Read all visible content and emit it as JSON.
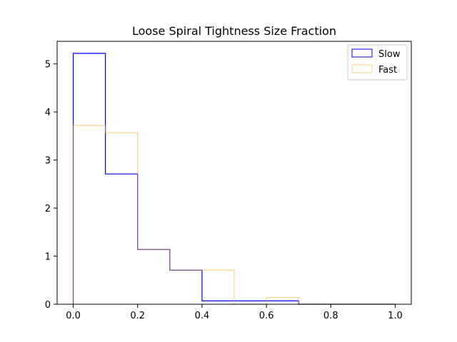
{
  "chart_data": {
    "type": "histogram",
    "title": "Loose Spiral Tightness Size Fraction",
    "xlabel": "",
    "ylabel": "",
    "bin_edges": [
      0.0,
      0.1,
      0.2,
      0.3,
      0.4,
      0.5,
      0.6,
      0.7,
      0.8,
      0.9,
      1.0
    ],
    "xlim": [
      -0.05,
      1.05
    ],
    "ylim": [
      0,
      5.47
    ],
    "xticks": [
      0.0,
      0.2,
      0.4,
      0.6,
      0.8,
      1.0
    ],
    "xtick_labels": [
      "0.0",
      "0.2",
      "0.4",
      "0.6",
      "0.8",
      "1.0"
    ],
    "yticks": [
      0,
      1,
      2,
      3,
      4,
      5
    ],
    "ytick_labels": [
      "0",
      "1",
      "2",
      "3",
      "4",
      "5"
    ],
    "grid": false,
    "legend_position": "top-right",
    "series": [
      {
        "name": "Slow",
        "color": "#0000ff",
        "values": [
          5.22,
          2.71,
          1.14,
          0.71,
          0.07,
          0.07,
          0.07,
          0.0,
          0.0,
          0.0
        ]
      },
      {
        "name": "Fast",
        "color": "#ffa500",
        "values": [
          3.72,
          3.57,
          1.14,
          0.71,
          0.71,
          0.0,
          0.14,
          0.0,
          0.0,
          0.0
        ]
      }
    ]
  }
}
